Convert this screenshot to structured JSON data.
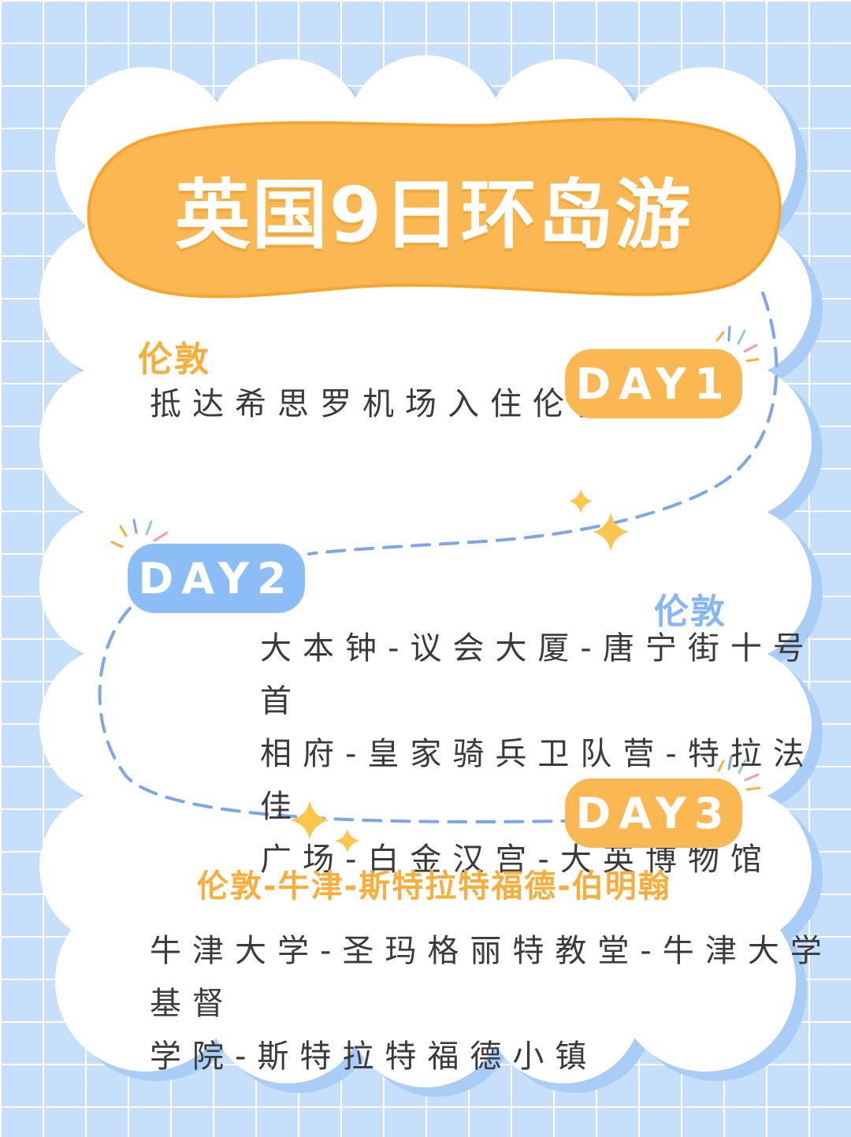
{
  "title": "英国9日环岛游",
  "colors": {
    "background": "#c6dffb",
    "cloud": "#ffffff",
    "orange": "#fbb852",
    "blue": "#8cbdf7",
    "dash": "#7da6ea",
    "text": "#3a3a3a"
  },
  "days": [
    {
      "badge": "DAY1",
      "city": "伦敦",
      "lines": [
        "抵达希思罗机场入住伦敦"
      ]
    },
    {
      "badge": "DAY2",
      "city": "伦敦",
      "lines": [
        "大本钟-议会大厦-唐宁街十号首",
        "相府-皇家骑兵卫队营-特拉法佳",
        "广场-白金汉宫-大英博物馆"
      ]
    },
    {
      "badge": "DAY3",
      "city": "伦敦-牛津-斯特拉特福德-伯明翰",
      "lines": [
        "牛津大学-圣玛格丽特教堂-牛津大学基督",
        "学院-斯特拉特福德小镇"
      ]
    }
  ]
}
